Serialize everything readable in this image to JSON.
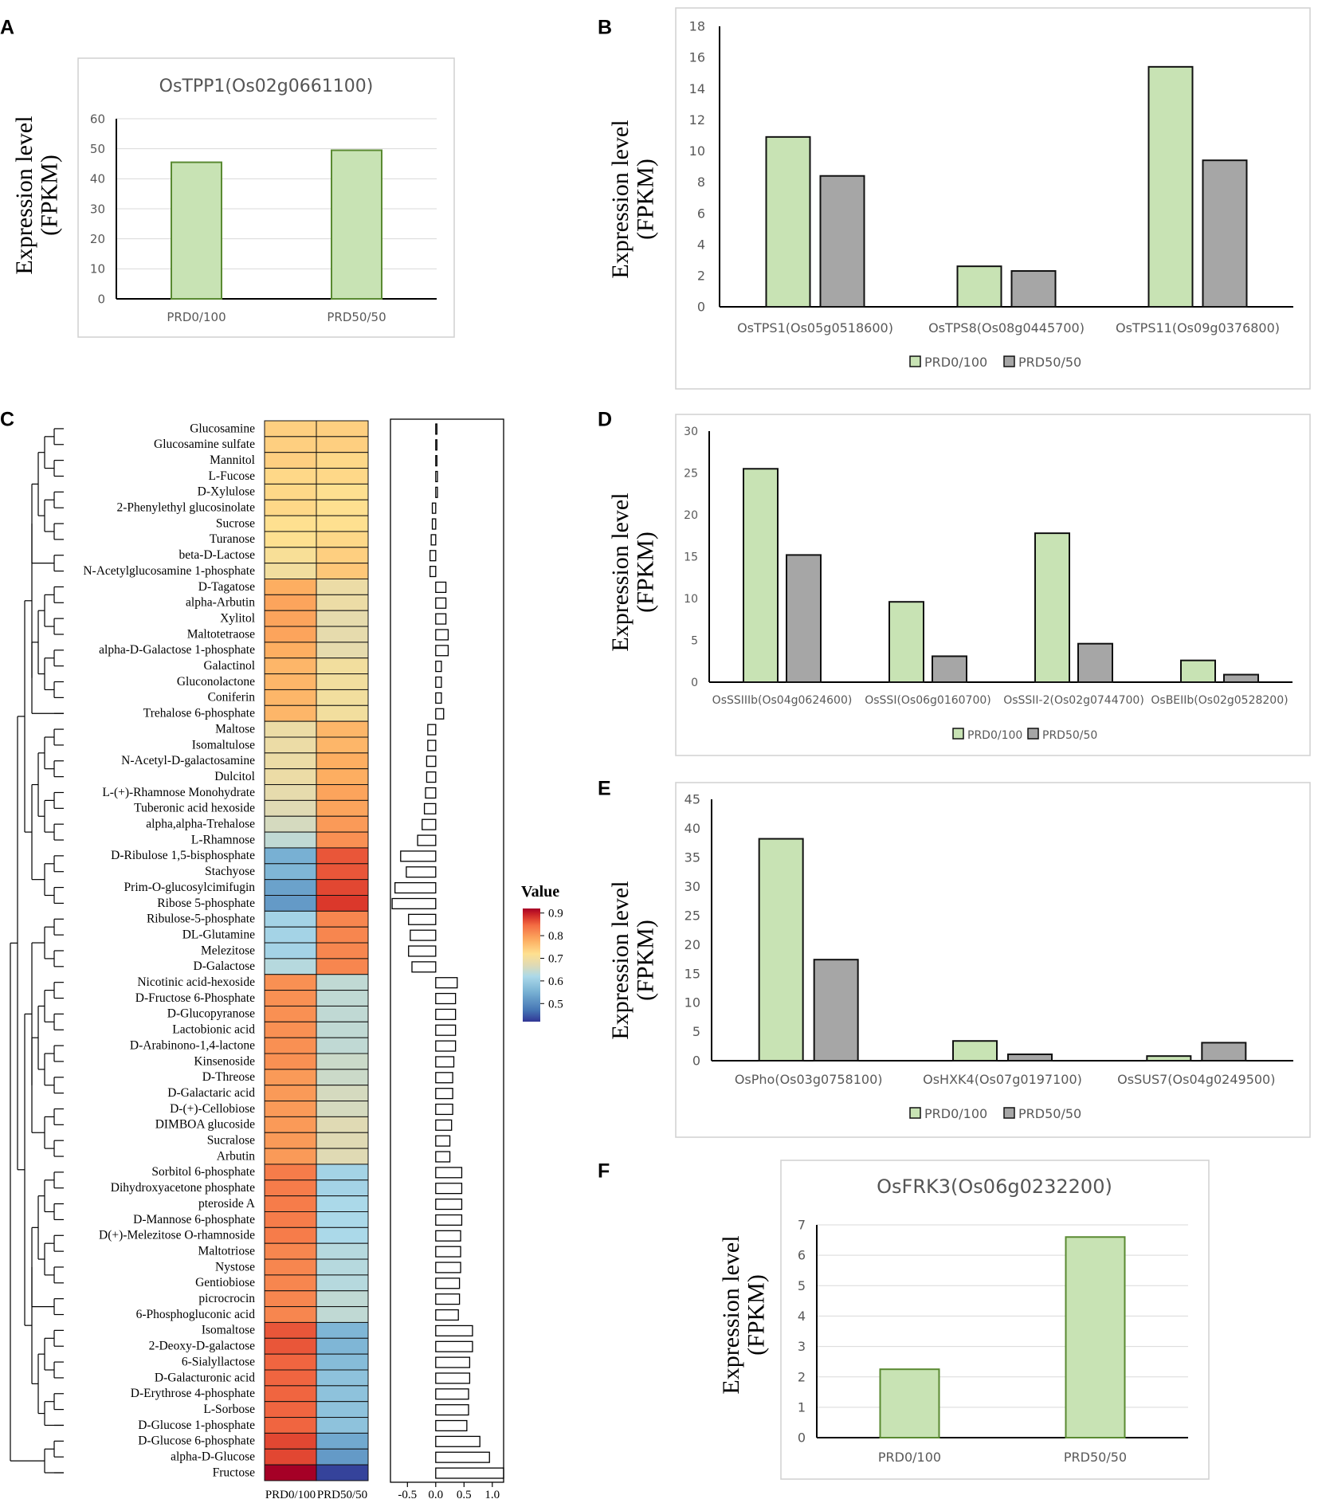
{
  "panel_letters": [
    "A",
    "B",
    "C",
    "D",
    "E",
    "F"
  ],
  "colors": {
    "green_fill": "#c8e3b4",
    "green_edge": "#5a8a32",
    "gray_fill": "#a6a6a6",
    "dark_edge": "#111111",
    "grid": "#d9d9d9",
    "axis_text": "#595959",
    "frame": "#d0d0d0"
  },
  "chart_data": [
    {
      "id": "A",
      "type": "bar",
      "title": "OsTPP1(Os02g0661100)",
      "ylabel": [
        "Expression level",
        "(FPKM)"
      ],
      "categories": [
        "PRD0/100",
        "PRD50/50"
      ],
      "series": [
        {
          "name": "PRD0/100",
          "values": [
            45.5,
            49.5
          ]
        }
      ],
      "ylim": [
        0,
        60
      ],
      "yticks": [
        0,
        10,
        20,
        30,
        40,
        50,
        60
      ],
      "grid": true,
      "legend": null
    },
    {
      "id": "B",
      "type": "bar",
      "title": "",
      "ylabel": [
        "Expression level",
        "(FPKM)"
      ],
      "categories": [
        "OsTPS1(Os05g0518600)",
        "OsTPS8(Os08g0445700)",
        "OsTPS11(Os09g0376800)"
      ],
      "series": [
        {
          "name": "PRD0/100",
          "values": [
            10.9,
            2.6,
            15.4
          ]
        },
        {
          "name": "PRD50/50",
          "values": [
            8.4,
            2.3,
            9.4
          ]
        }
      ],
      "ylim": [
        0,
        18
      ],
      "yticks": [
        0,
        2,
        4,
        6,
        8,
        10,
        12,
        14,
        16,
        18
      ],
      "grid": false,
      "legend": "bottom"
    },
    {
      "id": "D",
      "type": "bar",
      "title": "",
      "ylabel": [
        "Expression level",
        "(FPKM)"
      ],
      "categories": [
        "OsSSIIIb(Os04g0624600)",
        "OsSSI(Os06g0160700)",
        "OsSSII-2(Os02g0744700)",
        "OsBEIIb(Os02g0528200)"
      ],
      "series": [
        {
          "name": "PRD0/100",
          "values": [
            25.5,
            9.6,
            17.8,
            2.6
          ]
        },
        {
          "name": "PRD50/50",
          "values": [
            15.2,
            3.1,
            4.6,
            0.9
          ]
        }
      ],
      "ylim": [
        0,
        30
      ],
      "yticks": [
        0,
        5,
        10,
        15,
        20,
        25,
        30
      ],
      "grid": false,
      "legend": "bottom"
    },
    {
      "id": "E",
      "type": "bar",
      "title": "",
      "ylabel": [
        "Expression level",
        "(FPKM)"
      ],
      "categories": [
        "OsPho(Os03g0758100)",
        "OsHXK4(Os07g0197100)",
        "OsSUS7(Os04g0249500)"
      ],
      "series": [
        {
          "name": "PRD0/100",
          "values": [
            38.2,
            3.4,
            0.8
          ]
        },
        {
          "name": "PRD50/50",
          "values": [
            17.4,
            1.1,
            3.1
          ]
        }
      ],
      "ylim": [
        0,
        45
      ],
      "yticks": [
        0,
        5,
        10,
        15,
        20,
        25,
        30,
        35,
        40,
        45
      ],
      "grid": false,
      "legend": "bottom"
    },
    {
      "id": "F",
      "type": "bar",
      "title": "OsFRK3(Os06g0232200)",
      "ylabel": [
        "Expression level",
        "(FPKM)"
      ],
      "categories": [
        "PRD0/100",
        "PRD50/50"
      ],
      "series": [
        {
          "name": "PRD0/100",
          "values": [
            2.25,
            6.6
          ]
        }
      ],
      "ylim": [
        0,
        7
      ],
      "yticks": [
        0,
        1,
        2,
        3,
        4,
        5,
        6,
        7
      ],
      "grid": true,
      "legend": null
    },
    {
      "id": "C",
      "type": "heatmap",
      "columns": [
        "PRD0/100",
        "PRD50/50"
      ],
      "colorbar": {
        "title": "Value",
        "ticks": [
          0.9,
          0.8,
          0.7,
          0.6,
          0.5
        ],
        "range": [
          0.42,
          0.92
        ]
      },
      "rows": [
        {
          "name": "Glucosamine",
          "v": [
            0.74,
            0.74
          ],
          "bar": 0.0
        },
        {
          "name": "Glucosamine sulfate",
          "v": [
            0.74,
            0.74
          ],
          "bar": 0.0
        },
        {
          "name": "Mannitol",
          "v": [
            0.74,
            0.73
          ],
          "bar": 0.01
        },
        {
          "name": "L-Fucose",
          "v": [
            0.73,
            0.73
          ],
          "bar": 0.03
        },
        {
          "name": "D-Xylulose",
          "v": [
            0.73,
            0.72
          ],
          "bar": 0.03
        },
        {
          "name": "2-Phenylethyl glucosinolate",
          "v": [
            0.73,
            0.72
          ],
          "bar": -0.06
        },
        {
          "name": "Sucrose",
          "v": [
            0.72,
            0.72
          ],
          "bar": -0.06
        },
        {
          "name": "Turanose",
          "v": [
            0.72,
            0.73
          ],
          "bar": -0.08
        },
        {
          "name": "beta-D-Lactose",
          "v": [
            0.71,
            0.74
          ],
          "bar": -0.1
        },
        {
          "name": "N-Acetylglucosamine 1-phosphate",
          "v": [
            0.7,
            0.75
          ],
          "bar": -0.1
        },
        {
          "name": "D-Tagatose",
          "v": [
            0.78,
            0.69
          ],
          "bar": 0.18
        },
        {
          "name": "alpha-Arbutin",
          "v": [
            0.79,
            0.69
          ],
          "bar": 0.18
        },
        {
          "name": "Xylitol",
          "v": [
            0.79,
            0.68
          ],
          "bar": 0.18
        },
        {
          "name": "Maltotetraose",
          "v": [
            0.79,
            0.68
          ],
          "bar": 0.22
        },
        {
          "name": "alpha-D-Galactose 1-phosphate",
          "v": [
            0.78,
            0.68
          ],
          "bar": 0.22
        },
        {
          "name": "Galactinol",
          "v": [
            0.77,
            0.7
          ],
          "bar": 0.1
        },
        {
          "name": "Gluconolactone",
          "v": [
            0.77,
            0.7
          ],
          "bar": 0.1
        },
        {
          "name": "Coniferin",
          "v": [
            0.77,
            0.7
          ],
          "bar": 0.1
        },
        {
          "name": "Trehalose 6-phosphate",
          "v": [
            0.77,
            0.7
          ],
          "bar": 0.14
        },
        {
          "name": "Maltose",
          "v": [
            0.69,
            0.77
          ],
          "bar": -0.14
        },
        {
          "name": "Isomaltulose",
          "v": [
            0.69,
            0.77
          ],
          "bar": -0.14
        },
        {
          "name": "N-Acetyl-D-galactosamine",
          "v": [
            0.69,
            0.78
          ],
          "bar": -0.16
        },
        {
          "name": "Dulcitol",
          "v": [
            0.69,
            0.78
          ],
          "bar": -0.16
        },
        {
          "name": "L-(+)-Rhamnose Monohydrate",
          "v": [
            0.68,
            0.79
          ],
          "bar": -0.18
        },
        {
          "name": "Tuberonic acid hexoside",
          "v": [
            0.67,
            0.79
          ],
          "bar": -0.2
        },
        {
          "name": "alpha,alpha-Trehalose",
          "v": [
            0.66,
            0.8
          ],
          "bar": -0.24
        },
        {
          "name": "L-Rhamnose",
          "v": [
            0.64,
            0.81
          ],
          "bar": -0.32
        },
        {
          "name": "D-Ribulose 1,5-bisphosphate",
          "v": [
            0.55,
            0.86
          ],
          "bar": -0.62
        },
        {
          "name": "Stachyose",
          "v": [
            0.56,
            0.86
          ],
          "bar": -0.52
        },
        {
          "name": "Prim-O-glucosylcimifugin",
          "v": [
            0.53,
            0.87
          ],
          "bar": -0.72
        },
        {
          "name": "Ribose 5-phosphate",
          "v": [
            0.52,
            0.88
          ],
          "bar": -0.77
        },
        {
          "name": "Ribulose-5-phosphate",
          "v": [
            0.61,
            0.82
          ],
          "bar": -0.48
        },
        {
          "name": "DL-Glutamine",
          "v": [
            0.61,
            0.82
          ],
          "bar": -0.45
        },
        {
          "name": "Melezitose",
          "v": [
            0.61,
            0.82
          ],
          "bar": -0.48
        },
        {
          "name": "D-Galactose",
          "v": [
            0.63,
            0.82
          ],
          "bar": -0.42
        },
        {
          "name": "Nicotinic acid-hexoside",
          "v": [
            0.81,
            0.64
          ],
          "bar": 0.38
        },
        {
          "name": "D-Fructose 6-Phosphate",
          "v": [
            0.81,
            0.64
          ],
          "bar": 0.35
        },
        {
          "name": "D-Glucopyranose",
          "v": [
            0.81,
            0.64
          ],
          "bar": 0.35
        },
        {
          "name": "Lactobionic acid",
          "v": [
            0.81,
            0.64
          ],
          "bar": 0.35
        },
        {
          "name": "D-Arabinono-1,4-lactone",
          "v": [
            0.81,
            0.64
          ],
          "bar": 0.35
        },
        {
          "name": "Kinsenoside",
          "v": [
            0.81,
            0.65
          ],
          "bar": 0.32
        },
        {
          "name": "D-Threose",
          "v": [
            0.8,
            0.65
          ],
          "bar": 0.3
        },
        {
          "name": "D-Galactaric acid",
          "v": [
            0.8,
            0.66
          ],
          "bar": 0.3
        },
        {
          "name": "D-(+)-Cellobiose",
          "v": [
            0.8,
            0.66
          ],
          "bar": 0.3
        },
        {
          "name": "DIMBOA glucoside",
          "v": [
            0.8,
            0.67
          ],
          "bar": 0.28
        },
        {
          "name": "Sucralose",
          "v": [
            0.8,
            0.67
          ],
          "bar": 0.25
        },
        {
          "name": "Arbutin",
          "v": [
            0.8,
            0.67
          ],
          "bar": 0.25
        },
        {
          "name": "Sorbitol 6-phosphate",
          "v": [
            0.83,
            0.61
          ],
          "bar": 0.46
        },
        {
          "name": "Dihydroxyacetone phosphate",
          "v": [
            0.83,
            0.61
          ],
          "bar": 0.46
        },
        {
          "name": "pteroside A",
          "v": [
            0.83,
            0.62
          ],
          "bar": 0.46
        },
        {
          "name": "D-Mannose 6-phosphate",
          "v": [
            0.83,
            0.62
          ],
          "bar": 0.46
        },
        {
          "name": "D(+)-Melezitose O-rhamnoside",
          "v": [
            0.83,
            0.62
          ],
          "bar": 0.44
        },
        {
          "name": "Maltotriose",
          "v": [
            0.82,
            0.63
          ],
          "bar": 0.44
        },
        {
          "name": "Nystose",
          "v": [
            0.82,
            0.63
          ],
          "bar": 0.44
        },
        {
          "name": "Gentiobiose",
          "v": [
            0.82,
            0.63
          ],
          "bar": 0.42
        },
        {
          "name": "picrocrocin",
          "v": [
            0.82,
            0.64
          ],
          "bar": 0.42
        },
        {
          "name": "6-Phosphogluconic acid",
          "v": [
            0.82,
            0.64
          ],
          "bar": 0.4
        },
        {
          "name": "Isomaltose",
          "v": [
            0.86,
            0.56
          ],
          "bar": 0.65
        },
        {
          "name": "2-Deoxy-D-galactose",
          "v": [
            0.86,
            0.56
          ],
          "bar": 0.65
        },
        {
          "name": "6-Sialyllactose",
          "v": [
            0.85,
            0.57
          ],
          "bar": 0.6
        },
        {
          "name": "D-Galacturonic acid",
          "v": [
            0.85,
            0.58
          ],
          "bar": 0.6
        },
        {
          "name": "D-Erythrose 4-phosphate",
          "v": [
            0.85,
            0.58
          ],
          "bar": 0.58
        },
        {
          "name": "L-Sorbose",
          "v": [
            0.85,
            0.58
          ],
          "bar": 0.58
        },
        {
          "name": "D-Glucose 1-phosphate",
          "v": [
            0.85,
            0.58
          ],
          "bar": 0.55
        },
        {
          "name": "D-Glucose 6-phosphate",
          "v": [
            0.87,
            0.54
          ],
          "bar": 0.78
        },
        {
          "name": "alpha-D-Glucose",
          "v": [
            0.87,
            0.52
          ],
          "bar": 0.95
        },
        {
          "name": "Fructose",
          "v": [
            0.92,
            0.43
          ],
          "bar": 1.2
        }
      ],
      "bar_axis": {
        "ticks": [
          -0.5,
          0.0,
          0.5,
          1.0
        ],
        "tick_labels": [
          "-0.5",
          "0.0",
          "0.5",
          "1.0"
        ],
        "range": [
          -0.8,
          1.2
        ]
      }
    }
  ]
}
